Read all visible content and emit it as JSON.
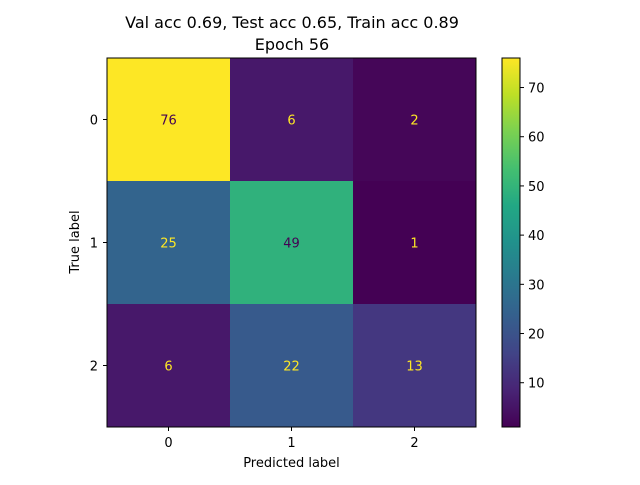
{
  "chart_data": {
    "type": "heatmap",
    "title": [
      "Val acc 0.69, Test acc 0.65, Train acc 0.89",
      "Epoch 56"
    ],
    "xlabel": "Predicted label",
    "ylabel": "True label",
    "x_categories": [
      "0",
      "1",
      "2"
    ],
    "y_categories": [
      "0",
      "1",
      "2"
    ],
    "matrix": [
      [
        76,
        6,
        2
      ],
      [
        25,
        49,
        1
      ],
      [
        6,
        22,
        13
      ]
    ],
    "colormap": "viridis",
    "colorbar": {
      "min": 1,
      "max": 76,
      "ticks": [
        10,
        20,
        30,
        40,
        50,
        60,
        70
      ]
    },
    "annotation_colors": {
      "on_dark": "#fde725",
      "on_light": "#440154"
    },
    "grid": false
  }
}
